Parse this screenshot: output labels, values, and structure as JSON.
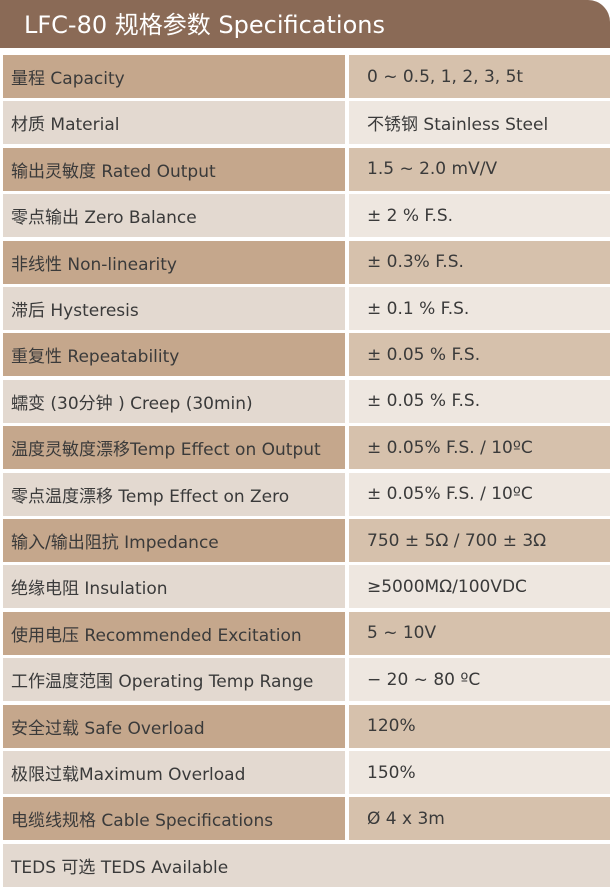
{
  "header": {
    "title": "LFC-80 规格参数 Specifications"
  },
  "table": {
    "rows": [
      [
        "量程 Capacity",
        "0 ~ 0.5, 1, 2, 3, 5t"
      ],
      [
        "材质 Material",
        "不锈钢 Stainless Steel"
      ],
      [
        "输出灵敏度 Rated Output",
        "1.5 ~ 2.0 mV/V"
      ],
      [
        "零点输出  Zero Balance",
        "± 2 % F.S."
      ],
      [
        "非线性 Non-linearity",
        "± 0.3% F.S."
      ],
      [
        "滞后 Hysteresis",
        "± 0.1 % F.S."
      ],
      [
        "重复性 Repeatability",
        "± 0.05 % F.S."
      ],
      [
        "蠕变 (30分钟 ) Creep (30min)",
        "± 0.05 % F.S."
      ],
      [
        "温度灵敏度漂移Temp Effect on Output",
        "± 0.05% F.S. / 10ºC"
      ],
      [
        "零点温度漂移 Temp Effect on Zero",
        "± 0.05% F.S. / 10ºC"
      ],
      [
        "输入/输出阻抗 Impedance",
        "750 ± 5Ω / 700 ± 3Ω"
      ],
      [
        "绝缘电阻  Insulation",
        "≥5000MΩ/100VDC"
      ],
      [
        "使用电压 Recommended Excitation",
        "5 ~ 10V"
      ],
      [
        "工作温度范围 Operating Temp  Range",
        "− 20 ~ 80 ºC"
      ],
      [
        "安全过载 Safe Overload",
        "120%"
      ],
      [
        "极限过载Maximum Overload",
        "150%"
      ],
      [
        "电缆线规格 Cable Specifications",
        "Ø 4 x 3m"
      ]
    ],
    "footer": "TEDS 可选 TEDS Available"
  }
}
